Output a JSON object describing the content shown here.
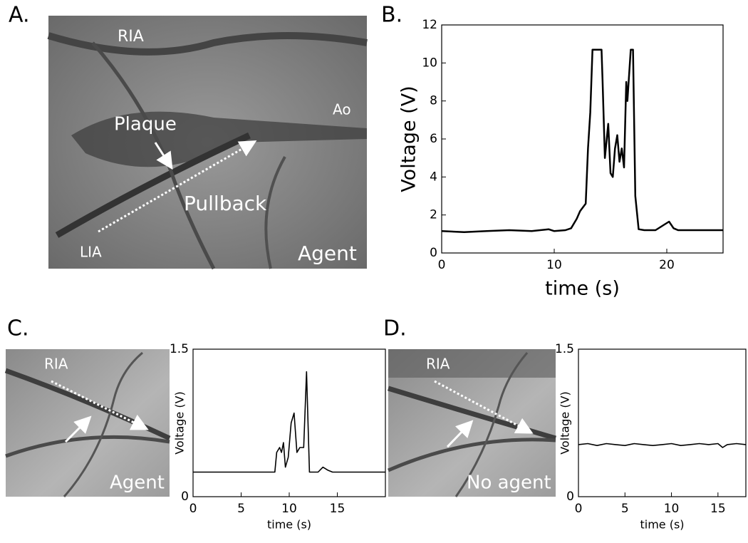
{
  "panels": {
    "a": {
      "letter": "A.",
      "labels": [
        "RIA",
        "Ao",
        "Plaque",
        "Pullback",
        "LIA",
        "Agent"
      ]
    },
    "b": {
      "letter": "B."
    },
    "c": {
      "letter": "C.",
      "labels": [
        "RIA",
        "Agent"
      ]
    },
    "d": {
      "letter": "D.",
      "labels": [
        "RIA",
        "No agent"
      ]
    }
  },
  "chart_data": [
    {
      "type": "line",
      "xlabel": "time (s)",
      "ylabel": "Voltage (V)",
      "color": "#000000",
      "xlim": [
        0,
        25
      ],
      "xticks": [
        0,
        10,
        20
      ],
      "ylim": [
        0,
        12
      ],
      "yticks": [
        0,
        2,
        4,
        6,
        8,
        10,
        12
      ],
      "x": [
        0,
        2,
        4,
        6,
        8,
        9.5,
        10,
        11,
        11.5,
        12,
        12.3,
        12.8,
        13.0,
        13.2,
        13.4,
        13.5,
        14.2,
        14.3,
        14.5,
        14.8,
        15.0,
        15.2,
        15.4,
        15.6,
        15.8,
        16.0,
        16.2,
        16.4,
        16.5,
        16.8,
        17.0,
        17.2,
        17.5,
        18,
        19,
        19.8,
        20.2,
        20.6,
        21,
        23,
        25
      ],
      "values": [
        1.15,
        1.1,
        1.15,
        1.2,
        1.15,
        1.25,
        1.15,
        1.2,
        1.3,
        1.8,
        2.2,
        2.6,
        5.5,
        7.4,
        10.7,
        10.7,
        10.7,
        9,
        5,
        6.8,
        4.2,
        4.0,
        5.5,
        6.2,
        4.8,
        5.5,
        4.5,
        9,
        8,
        10.7,
        10.7,
        3,
        1.25,
        1.2,
        1.2,
        1.5,
        1.65,
        1.3,
        1.2,
        1.2,
        1.2
      ]
    },
    {
      "type": "line",
      "xlabel": "time (s)",
      "ylabel": "Voltage (V)",
      "color": "#000000",
      "xlim": [
        0,
        20
      ],
      "xticks": [
        0,
        5,
        10,
        15
      ],
      "ylim": [
        0,
        1.5
      ],
      "yticks": [
        0,
        1.5
      ],
      "x": [
        0,
        2,
        4,
        6,
        8,
        8.5,
        8.7,
        9.0,
        9.2,
        9.4,
        9.6,
        9.9,
        10.2,
        10.5,
        10.8,
        11.1,
        11.5,
        11.8,
        12.1,
        13,
        13.5,
        14,
        14.5,
        17,
        20
      ],
      "values": [
        0.25,
        0.25,
        0.25,
        0.25,
        0.25,
        0.25,
        0.45,
        0.5,
        0.45,
        0.55,
        0.3,
        0.4,
        0.75,
        0.85,
        0.45,
        0.5,
        0.5,
        1.27,
        0.25,
        0.25,
        0.3,
        0.27,
        0.25,
        0.25,
        0.25
      ]
    },
    {
      "type": "line",
      "xlabel": "time (s)",
      "ylabel": "Voltage (V)",
      "color": "#000000",
      "xlim": [
        0,
        18
      ],
      "xticks": [
        0,
        5,
        10,
        15
      ],
      "ylim": [
        0,
        1.5
      ],
      "yticks": [
        0,
        1.5
      ],
      "x": [
        0,
        1,
        2,
        3,
        4,
        5,
        6,
        7,
        8,
        9,
        10,
        11,
        12,
        13,
        14,
        15,
        15.5,
        16,
        17,
        18
      ],
      "values": [
        0.53,
        0.54,
        0.52,
        0.54,
        0.53,
        0.52,
        0.54,
        0.53,
        0.52,
        0.53,
        0.54,
        0.52,
        0.53,
        0.54,
        0.53,
        0.54,
        0.5,
        0.53,
        0.54,
        0.53
      ]
    }
  ]
}
